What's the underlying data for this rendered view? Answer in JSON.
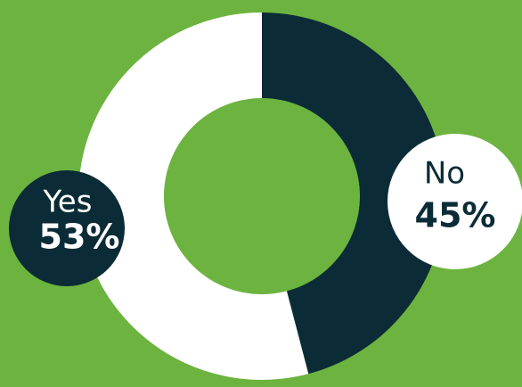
{
  "chart_data": {
    "type": "pie",
    "variant": "donut",
    "categories": [
      "No",
      "Yes"
    ],
    "values": [
      45,
      53
    ],
    "value_labels": [
      "45%",
      "53%"
    ],
    "series_colors": [
      "#0B2C36",
      "#FFFFFF"
    ],
    "title": "",
    "legend": "none"
  },
  "colors": {
    "background": "#6DB33F",
    "no_segment": "#0B2C36",
    "yes_segment": "#FFFFFF",
    "no_badge_fill": "#FFFFFF",
    "no_badge_text": "#0B2C36",
    "yes_badge_fill": "#0B2C36",
    "yes_badge_text": "#FFFFFF"
  }
}
